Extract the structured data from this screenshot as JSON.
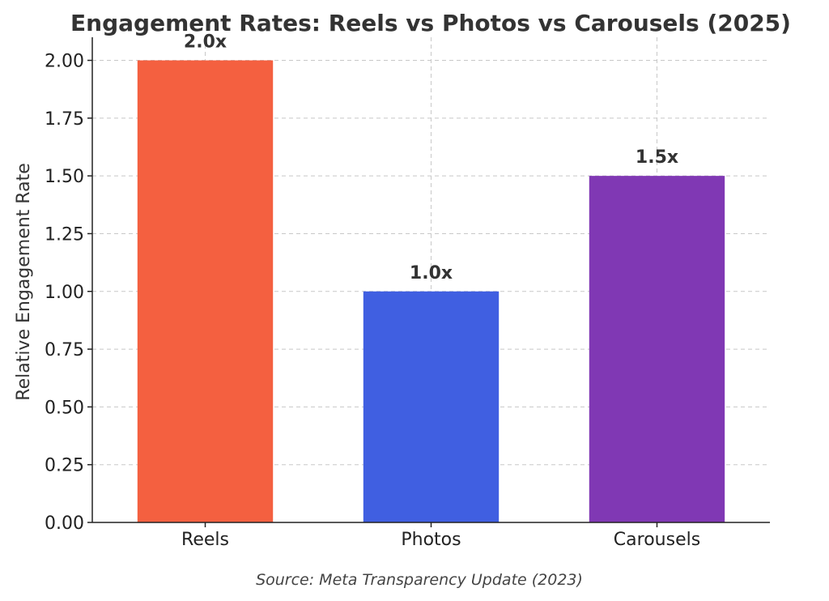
{
  "chart_data": {
    "type": "bar",
    "title": "Engagement Rates: Reels vs Photos vs Carousels (2025)",
    "xlabel": "",
    "ylabel": "Relative Engagement Rate",
    "categories": [
      "Reels",
      "Photos",
      "Carousels"
    ],
    "values": [
      2.0,
      1.0,
      1.5
    ],
    "data_labels": [
      "2.0x",
      "1.0x",
      "1.5x"
    ],
    "colors": [
      "#f46040",
      "#405fe1",
      "#8038b4"
    ],
    "ylim": [
      0,
      2.1
    ],
    "yticks": [
      "0.00",
      "0.25",
      "0.50",
      "0.75",
      "1.00",
      "1.25",
      "1.50",
      "1.75",
      "2.00"
    ],
    "grid": true
  },
  "footer": {
    "source": "Source: Meta Transparency Update (2023)"
  }
}
